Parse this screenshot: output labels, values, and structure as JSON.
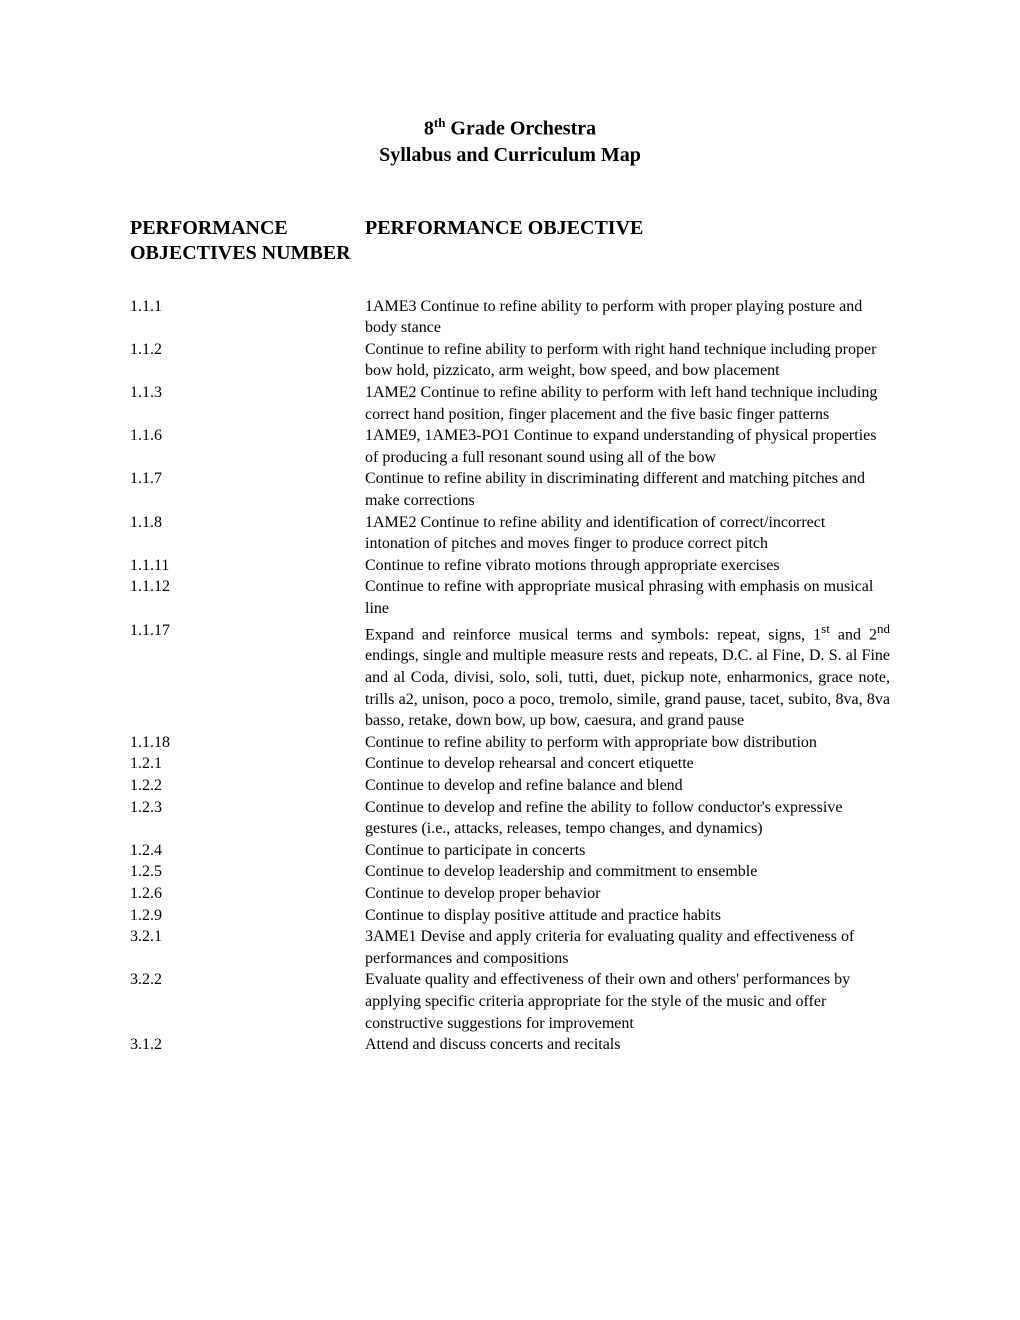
{
  "title": {
    "line1_pre": "8",
    "line1_sup": "th",
    "line1_post": " Grade Orchestra",
    "line2": "Syllabus and Curriculum Map"
  },
  "headers": {
    "left": "PERFORMANCE OBJECTIVES NUMBER",
    "right": "PERFORMANCE OBJECTIVE"
  },
  "rows": [
    {
      "num": "1.1.1",
      "obj": "1AME3  Continue to refine ability to perform with proper playing posture and body stance"
    },
    {
      "num": "1.1.2",
      "obj": "Continue to refine ability to perform with right hand technique including proper bow hold, pizzicato, arm weight, bow speed, and bow placement"
    },
    {
      "num": "1.1.3",
      "obj": "1AME2  Continue to refine ability to perform with left hand technique including correct hand position, finger placement and the five basic finger patterns"
    },
    {
      "num": "1.1.6",
      "obj": "1AME9, 1AME3-PO1  Continue to expand understanding of physical properties of producing a full resonant sound using all of the bow"
    },
    {
      "num": "1.1.7",
      "obj": "Continue to refine ability in discriminating different and matching pitches and make corrections"
    },
    {
      "num": "1.1.8",
      "obj": "1AME2  Continue to refine ability and identification of correct/incorrect intonation of pitches and moves finger to produce correct pitch"
    },
    {
      "num": "1.1.11",
      "obj": "Continue to refine vibrato motions through appropriate exercises"
    },
    {
      "num": "1.1.12",
      "obj": "Continue to refine with appropriate musical phrasing with emphasis on musical line"
    },
    {
      "num": "1.1.17",
      "obj_parts": {
        "pre": "Expand and reinforce musical terms and symbols: repeat, signs, 1",
        "sup1": "st",
        "mid1": " and 2",
        "sup2": "nd",
        "post": " endings, single and multiple measure rests and repeats, D.C. al Fine, D. S. al Fine and al Coda, divisi, solo, soli, tutti, duet, pickup note, enharmonics, grace note, trills a2, unison,  poco a poco, tremolo, simile, grand pause, tacet, subito, 8va, 8va basso, retake, down bow, up bow, caesura, and grand pause"
      },
      "justify": true
    },
    {
      "num": "1.1.18",
      "obj": "Continue to refine ability to perform with appropriate bow distribution"
    },
    {
      "num": "1.2.1",
      "obj": "Continue to develop rehearsal and concert etiquette"
    },
    {
      "num": "1.2.2",
      "obj": "Continue to develop and refine balance and blend"
    },
    {
      "num": "1.2.3",
      "obj": "Continue to develop and refine the ability to follow conductor's expressive gestures (i.e., attacks, releases, tempo changes, and dynamics)"
    },
    {
      "num": "1.2.4",
      "obj": "Continue to participate in concerts"
    },
    {
      "num": "1.2.5",
      "obj": "Continue to develop leadership and commitment to ensemble"
    },
    {
      "num": "1.2.6",
      "obj": "Continue to develop proper behavior"
    },
    {
      "num": "1.2.9",
      "obj": "Continue to display positive attitude and practice habits"
    },
    {
      "num": "3.2.1",
      "obj": "3AME1  Devise and apply criteria for evaluating quality and effectiveness of performances and compositions"
    },
    {
      "num": "3.2.2",
      "obj": "Evaluate quality and effectiveness of their own and others' performances by applying specific criteria appropriate for the style of the music and offer constructive suggestions for improvement"
    },
    {
      "num": "3.1.2",
      "obj": "Attend and discuss concerts and recitals"
    }
  ]
}
